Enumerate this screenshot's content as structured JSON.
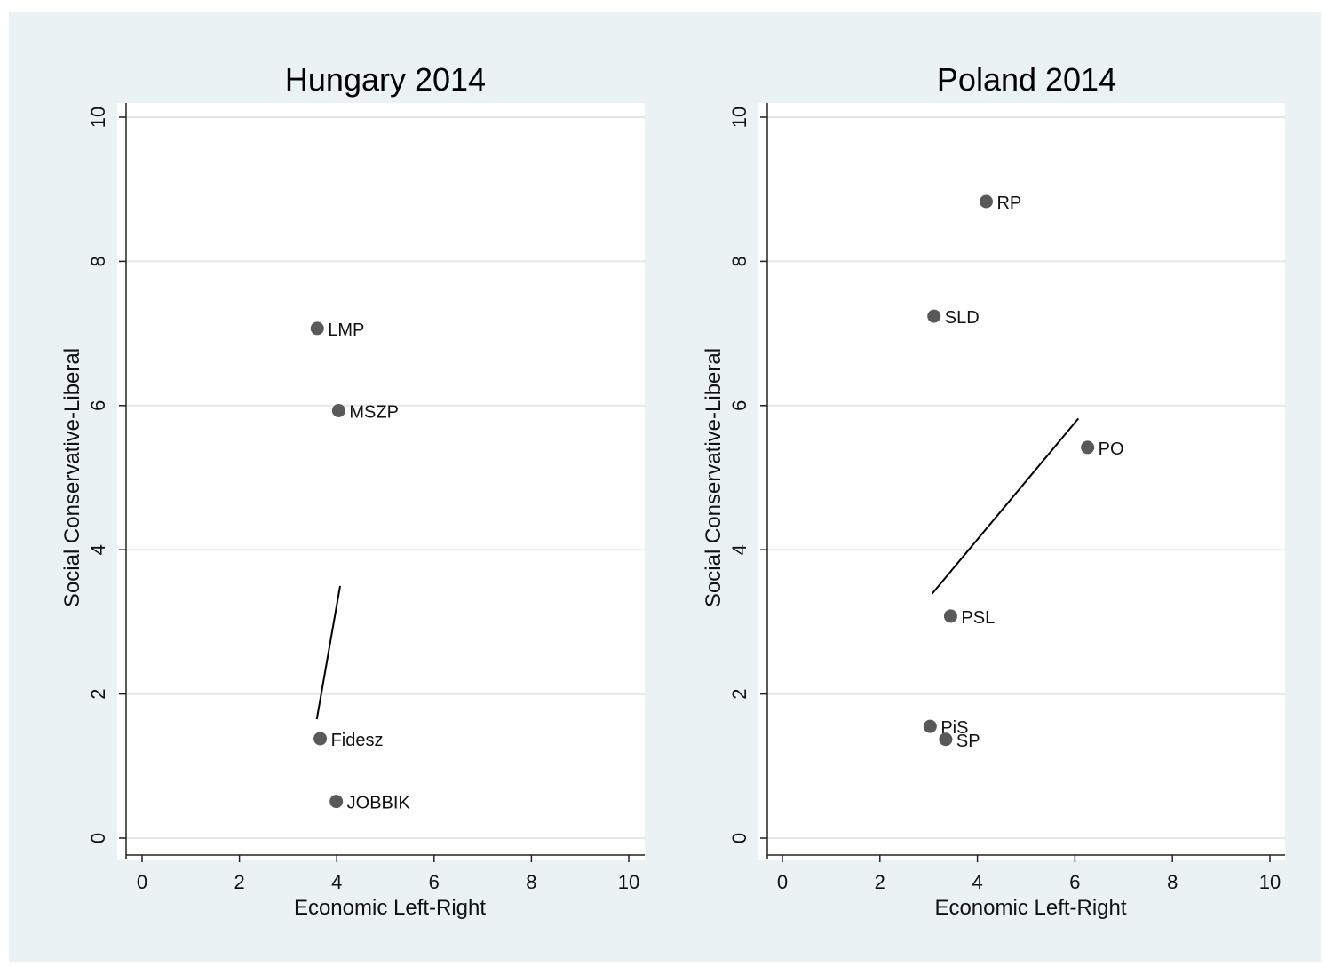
{
  "chart_data": [
    {
      "type": "scatter",
      "title": "Hungary 2014",
      "xlabel": "Economic Left-Right",
      "ylabel": "Social Conservative-Liberal",
      "xlim": [
        0,
        10
      ],
      "ylim": [
        0,
        10
      ],
      "xticks": [
        0,
        2,
        4,
        6,
        8,
        10
      ],
      "yticks": [
        0,
        2,
        4,
        6,
        8,
        10
      ],
      "grid": true,
      "points": [
        {
          "label": "LMP",
          "x": 3.6,
          "y": 7.07
        },
        {
          "label": "MSZP",
          "x": 4.04,
          "y": 5.93
        },
        {
          "label": "Fidesz",
          "x": 3.66,
          "y": 1.38
        },
        {
          "label": "JOBBIK",
          "x": 3.99,
          "y": 0.51
        }
      ],
      "line": [
        {
          "x": 3.59,
          "y": 1.65
        },
        {
          "x": 4.07,
          "y": 3.5
        }
      ]
    },
    {
      "type": "scatter",
      "title": "Poland 2014",
      "xlabel": "Economic Left-Right",
      "ylabel": "Social Conservative-Liberal",
      "xlim": [
        0,
        10
      ],
      "ylim": [
        0,
        10
      ],
      "xticks": [
        0,
        2,
        4,
        6,
        8,
        10
      ],
      "yticks": [
        0,
        2,
        4,
        6,
        8,
        10
      ],
      "grid": true,
      "points": [
        {
          "label": "RP",
          "x": 4.18,
          "y": 8.83
        },
        {
          "label": "SLD",
          "x": 3.11,
          "y": 7.24
        },
        {
          "label": "PO",
          "x": 6.26,
          "y": 5.42
        },
        {
          "label": "PSL",
          "x": 3.45,
          "y": 3.08
        },
        {
          "label": "PiS",
          "x": 3.03,
          "y": 1.55
        },
        {
          "label": "SP",
          "x": 3.35,
          "y": 1.37
        }
      ],
      "line": [
        {
          "x": 3.07,
          "y": 3.39
        },
        {
          "x": 6.07,
          "y": 5.82
        }
      ]
    }
  ],
  "colors": {
    "figure_background": "#eaf2f3",
    "plot_background": "#ffffff",
    "grid": "#e2e8ea",
    "marker": "#595959",
    "line": "#000000"
  }
}
